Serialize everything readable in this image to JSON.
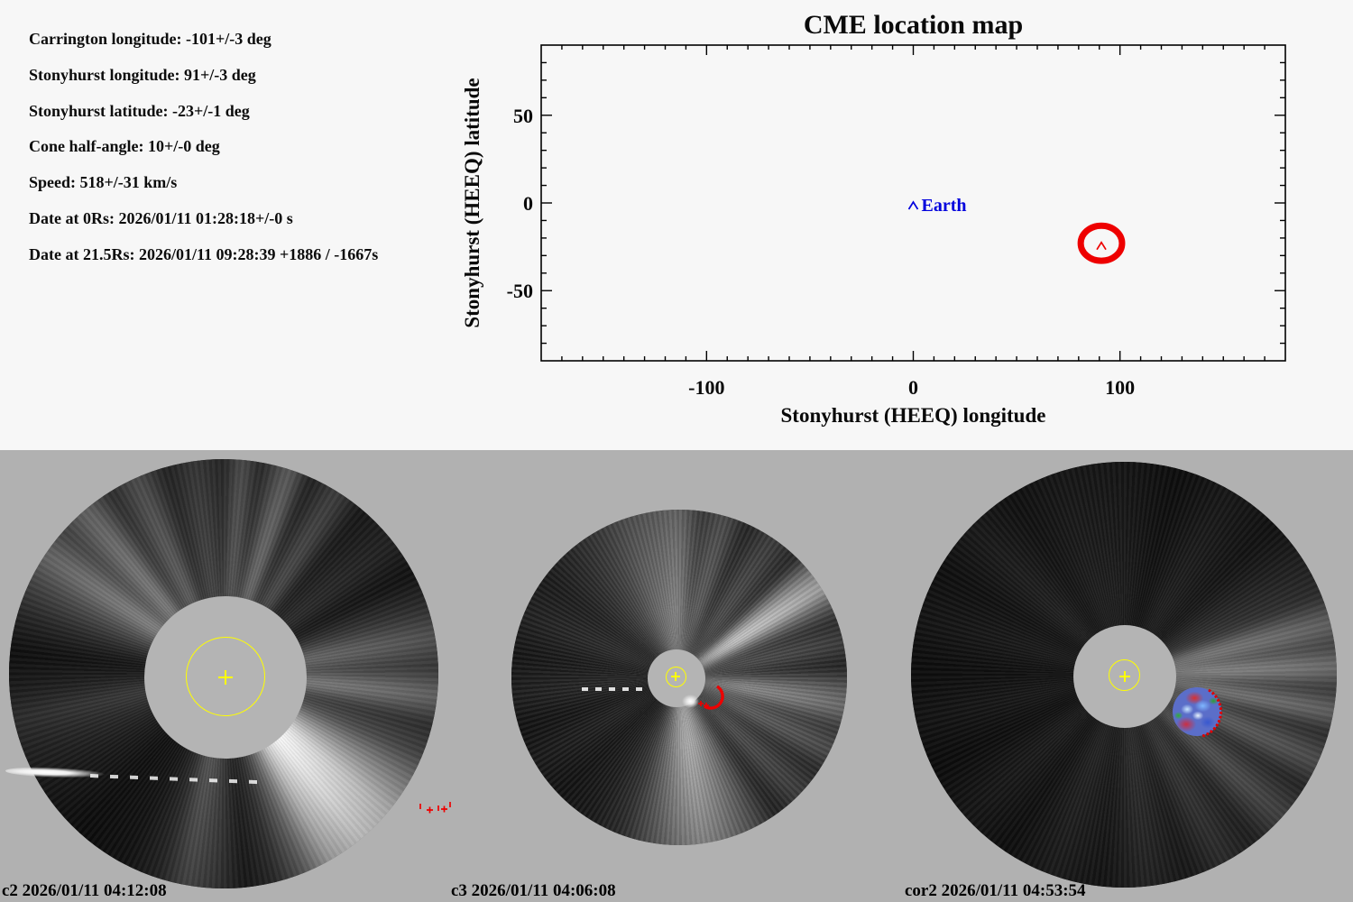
{
  "info_panel": {
    "lines": [
      "Carrington longitude: -101+/-3 deg",
      "Stonyhurst longitude: 91+/-3 deg",
      "Stonyhurst latitude: -23+/-1 deg",
      "Cone half-angle: 10+/-0 deg",
      "Speed: 518+/-31 km/s",
      "Date at 0Rs: 2026/01/11 01:28:18+/-0 s",
      "Date at 21.5Rs: 2026/01/11 09:28:39 +1886 / -1667s"
    ]
  },
  "chart_data": {
    "type": "scatter",
    "title": "CME location map",
    "xlabel": "Stonyhurst (HEEQ) longitude",
    "ylabel": "Stonyhurst (HEEQ) latitude",
    "xlim": [
      -180,
      180
    ],
    "ylim": [
      -90,
      90
    ],
    "x_major_ticks": [
      -100,
      0,
      100
    ],
    "y_major_ticks": [
      -50,
      0,
      50
    ],
    "minor_tick_step_deg": 10,
    "grid": false,
    "legend": "none",
    "points": [
      {
        "name": "earth",
        "label": "Earth",
        "x": 0,
        "y": 0,
        "marker": "caret",
        "color": "#0000dd"
      },
      {
        "name": "cme-source",
        "label": "",
        "x": 91,
        "y": -23,
        "marker": "caret",
        "color": "#ee0000",
        "cone_half_angle_deg": 10
      }
    ]
  },
  "colors": {
    "background_top": "#f7f7f7",
    "background_bottom": "#b1b1b1",
    "plot_foreground": "#000000",
    "earth_marker_blue": "#0000dd",
    "cme_annotation_red": "#ee0000",
    "overlay_yellow": "#ffff00"
  },
  "panels": [
    {
      "instrument": "c2",
      "label": "c2 2026/01/11 04:12:08"
    },
    {
      "instrument": "c3",
      "label": "c3 2026/01/11 04:06:08"
    },
    {
      "instrument": "cor2",
      "label": "cor2 2026/01/11 04:53:54"
    }
  ]
}
